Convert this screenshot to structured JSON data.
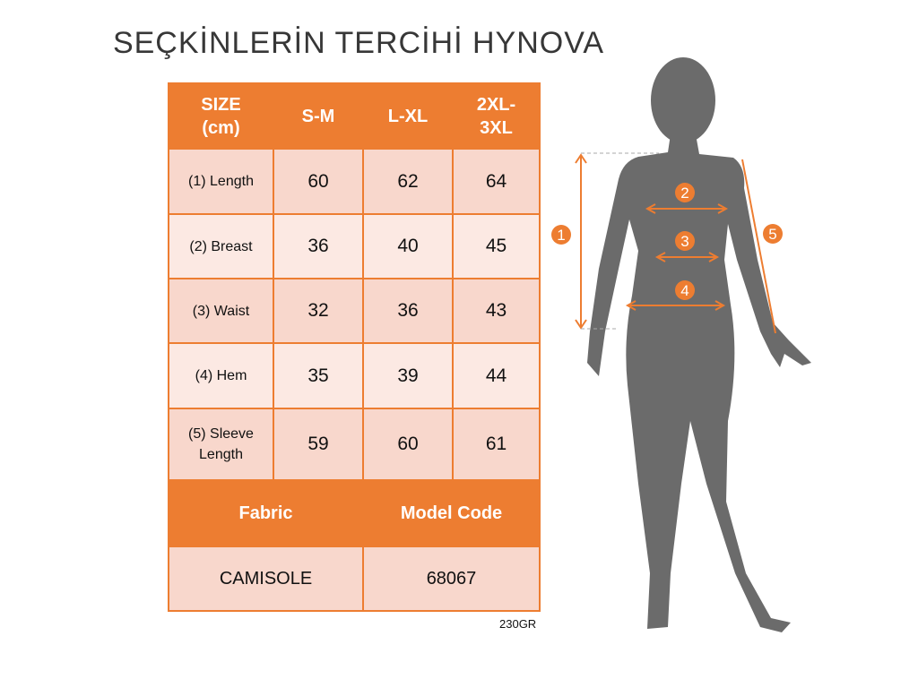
{
  "table": {
    "headers": [
      "SIZE\n(cm)",
      "S-M",
      "L-XL",
      "2XL-\n3XL"
    ],
    "rows": [
      {
        "label": "(1) Length",
        "values": [
          "60",
          "62",
          "64"
        ]
      },
      {
        "label": "(2) Breast",
        "values": [
          "36",
          "40",
          "45"
        ]
      },
      {
        "label": "(3) Waist",
        "values": [
          "32",
          "36",
          "43"
        ]
      },
      {
        "label": "(4) Hem",
        "values": [
          "35",
          "39",
          "44"
        ]
      },
      {
        "label": "(5) Sleeve Length",
        "values": [
          "59",
          "60",
          "61"
        ]
      }
    ],
    "footer_headers": [
      "Fabric",
      "Model Code"
    ],
    "footer_values": [
      "CAMISOLE",
      "68067"
    ]
  },
  "code": "230GR",
  "watermark": "SEÇKİNLERİN TERCİHİ HYNOVA",
  "markers": [
    "1",
    "2",
    "3",
    "4",
    "5"
  ],
  "colors": {
    "accent": "#ed7d31",
    "row_dark": "#f8d7cc",
    "row_light": "#fce9e3",
    "silhouette": "#6b6b6b"
  }
}
